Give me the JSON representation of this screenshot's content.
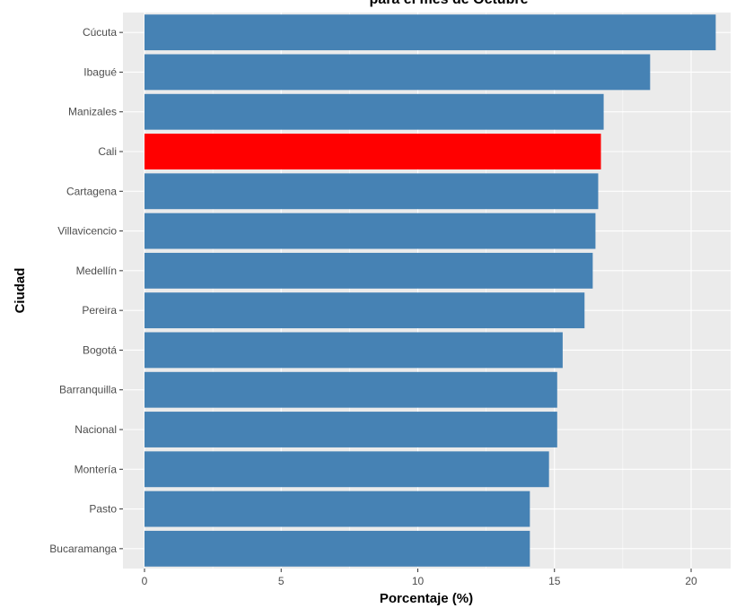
{
  "chart_data": {
    "type": "bar",
    "orientation": "horizontal",
    "title": "para el mes de Octubre",
    "xlabel": "Porcentaje (%)",
    "ylabel": "Ciudad",
    "xlim": [
      0,
      21.5
    ],
    "xticks": [
      0,
      5,
      10,
      15,
      20
    ],
    "grid": true,
    "categories": [
      "Cúcuta",
      "Ibagué",
      "Manizales",
      "Cali",
      "Cartagena",
      "Villavicencio",
      "Medellín",
      "Pereira",
      "Bogotá",
      "Barranquilla",
      "Nacional",
      "Montería",
      "Pasto",
      "Bucaramanga"
    ],
    "values": [
      20.9,
      18.5,
      16.8,
      16.7,
      16.6,
      16.5,
      16.4,
      16.1,
      15.3,
      15.1,
      15.1,
      14.8,
      14.1,
      14.1
    ],
    "highlight": "Cali",
    "colors": {
      "bar": "#4682B4",
      "highlight": "#FF0000",
      "panel": "#EBEBEB",
      "grid": "#FFFFFF"
    }
  }
}
